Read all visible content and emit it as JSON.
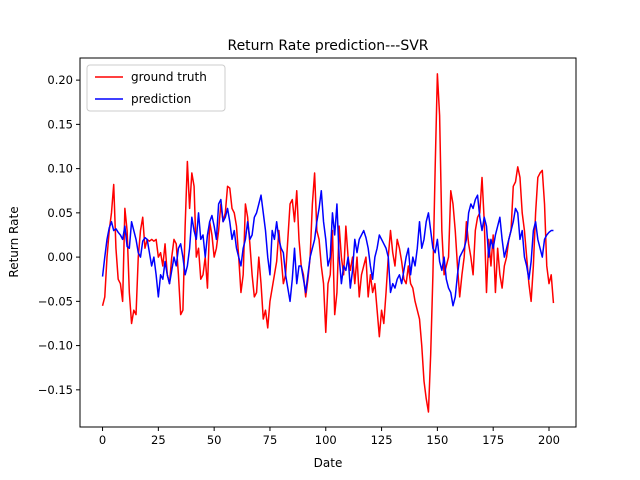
{
  "chart_data": {
    "type": "line",
    "title": "Return Rate prediction---SVR",
    "x_label": "Date",
    "y_label": "Return Rate",
    "x": [
      0,
      1,
      2,
      3,
      4,
      5,
      6,
      7,
      8,
      9,
      10,
      11,
      12,
      13,
      14,
      15,
      16,
      17,
      18,
      19,
      20,
      21,
      22,
      23,
      24,
      25,
      26,
      27,
      28,
      29,
      30,
      31,
      32,
      33,
      34,
      35,
      36,
      37,
      38,
      39,
      40,
      41,
      42,
      43,
      44,
      45,
      46,
      47,
      48,
      49,
      50,
      51,
      52,
      53,
      54,
      55,
      56,
      57,
      58,
      59,
      60,
      61,
      62,
      63,
      64,
      65,
      66,
      67,
      68,
      69,
      70,
      71,
      72,
      73,
      74,
      75,
      76,
      77,
      78,
      79,
      80,
      81,
      82,
      83,
      84,
      85,
      86,
      87,
      88,
      89,
      90,
      91,
      92,
      93,
      94,
      95,
      96,
      97,
      98,
      99,
      100,
      101,
      102,
      103,
      104,
      105,
      106,
      107,
      108,
      109,
      110,
      111,
      112,
      113,
      114,
      115,
      116,
      117,
      118,
      119,
      120,
      121,
      122,
      123,
      124,
      125,
      126,
      127,
      128,
      129,
      130,
      131,
      132,
      133,
      134,
      135,
      136,
      137,
      138,
      139,
      140,
      141,
      142,
      143,
      144,
      145,
      146,
      147,
      148,
      149,
      150,
      151,
      152,
      153,
      154,
      155,
      156,
      157,
      158,
      159,
      160,
      161,
      162,
      163,
      164,
      165,
      166,
      167,
      168,
      169,
      170,
      171,
      172,
      173,
      174,
      175,
      176,
      177,
      178,
      179,
      180,
      181,
      182,
      183,
      184,
      185,
      186,
      187,
      188,
      189,
      190,
      191,
      192,
      193,
      194,
      195,
      196,
      197,
      198,
      199,
      200,
      201,
      202
    ],
    "series": [
      {
        "name": "ground truth",
        "color": "#ff0000",
        "values": [
          -0.055,
          -0.045,
          0.0,
          0.03,
          0.05,
          0.082,
          0.01,
          -0.025,
          -0.03,
          -0.05,
          0.055,
          0.03,
          -0.04,
          -0.075,
          -0.06,
          -0.065,
          0.0,
          0.03,
          0.045,
          0.01,
          0.02,
          0.018,
          0.02,
          0.018,
          0.02,
          0.0,
          0.005,
          -0.01,
          0.015,
          -0.02,
          -0.03,
          0.0,
          0.02,
          0.015,
          -0.02,
          -0.065,
          -0.06,
          0.035,
          0.108,
          0.055,
          0.095,
          0.08,
          0.0,
          0.01,
          -0.025,
          -0.02,
          0.0,
          -0.035,
          0.04,
          0.025,
          0.0,
          0.01,
          0.03,
          0.06,
          0.04,
          0.05,
          0.08,
          0.078,
          0.055,
          0.05,
          0.035,
          0.0,
          -0.04,
          -0.02,
          0.06,
          0.045,
          0.015,
          -0.02,
          -0.045,
          -0.04,
          0.0,
          -0.03,
          -0.07,
          -0.06,
          -0.08,
          -0.05,
          -0.035,
          -0.02,
          -0.005,
          0.03,
          0.0,
          -0.03,
          -0.02,
          0.02,
          0.06,
          0.065,
          0.04,
          0.075,
          0.02,
          -0.01,
          -0.02,
          -0.045,
          -0.025,
          0.0,
          0.06,
          0.095,
          0.03,
          0.02,
          -0.01,
          -0.03,
          -0.085,
          -0.03,
          -0.02,
          0.03,
          -0.065,
          -0.04,
          0.035,
          0.0,
          -0.02,
          0.035,
          0.0,
          -0.015,
          0.0,
          -0.03,
          0.0,
          -0.045,
          -0.02,
          -0.01,
          0.0,
          -0.045,
          -0.02,
          -0.04,
          -0.03,
          -0.06,
          -0.09,
          -0.06,
          -0.075,
          -0.04,
          0.0,
          0.03,
          0.005,
          -0.01,
          0.02,
          0.01,
          -0.005,
          -0.025,
          -0.03,
          -0.01,
          -0.03,
          -0.035,
          -0.05,
          -0.06,
          -0.07,
          -0.1,
          -0.14,
          -0.16,
          -0.175,
          -0.11,
          -0.02,
          0.1,
          0.207,
          0.16,
          0.03,
          -0.02,
          -0.01,
          0.0,
          0.075,
          0.06,
          0.03,
          -0.01,
          -0.045,
          -0.02,
          0.0,
          0.04,
          0.015,
          0.0,
          -0.02,
          0.03,
          0.045,
          0.05,
          0.09,
          0.04,
          -0.04,
          0.02,
          -0.01,
          0.025,
          -0.04,
          0.01,
          -0.02,
          -0.035,
          -0.01,
          0.0,
          0.02,
          0.03,
          0.08,
          0.085,
          0.102,
          0.09,
          0.05,
          0.03,
          0.0,
          -0.03,
          -0.05,
          -0.01,
          0.05,
          0.09,
          0.095,
          0.098,
          0.06,
          -0.01,
          -0.03,
          -0.02,
          -0.052
        ]
      },
      {
        "name": "prediction",
        "color": "#0000ff",
        "values": [
          -0.022,
          0.0,
          0.02,
          0.033,
          0.04,
          0.03,
          0.032,
          0.028,
          0.025,
          0.02,
          0.035,
          0.012,
          0.01,
          0.04,
          0.03,
          0.02,
          0.005,
          0.0,
          0.018,
          0.022,
          0.02,
          0.005,
          -0.01,
          0.0,
          -0.02,
          -0.045,
          -0.02,
          -0.025,
          -0.005,
          -0.02,
          -0.03,
          -0.015,
          0.0,
          -0.01,
          0.01,
          0.015,
          0.0,
          -0.02,
          -0.01,
          0.01,
          0.045,
          0.03,
          0.02,
          0.05,
          0.02,
          0.025,
          0.0,
          0.025,
          0.04,
          0.047,
          0.035,
          0.02,
          0.06,
          0.065,
          0.04,
          0.045,
          0.055,
          0.04,
          0.02,
          0.03,
          0.01,
          0.0,
          -0.01,
          0.01,
          0.02,
          0.04,
          0.02,
          0.025,
          0.045,
          0.05,
          0.06,
          0.07,
          0.05,
          0.03,
          0.0,
          -0.02,
          0.03,
          0.02,
          0.04,
          0.02,
          0.01,
          0.005,
          -0.02,
          -0.035,
          -0.05,
          -0.025,
          0.01,
          -0.03,
          -0.01,
          -0.01,
          -0.025,
          -0.04,
          -0.02,
          0.0,
          0.01,
          0.02,
          0.04,
          0.055,
          0.075,
          0.04,
          0.02,
          -0.01,
          0.0,
          0.05,
          0.025,
          0.06,
          0.0,
          -0.03,
          -0.01,
          -0.015,
          0.0,
          -0.035,
          -0.015,
          0.02,
          0.005,
          0.02,
          0.025,
          0.03,
          0.022,
          0.01,
          -0.01,
          -0.025,
          0.0,
          0.01,
          0.025,
          0.02,
          0.015,
          0.01,
          0.0,
          -0.04,
          -0.03,
          -0.035,
          -0.025,
          -0.02,
          -0.03,
          -0.015,
          0.0,
          0.01,
          -0.02,
          0.0,
          -0.01,
          0.01,
          0.04,
          0.01,
          0.02,
          0.04,
          0.05,
          0.03,
          0.01,
          0.005,
          0.02,
          -0.005,
          -0.015,
          0.0,
          -0.025,
          -0.035,
          -0.04,
          -0.055,
          -0.045,
          -0.02,
          0.0,
          0.005,
          0.01,
          0.02,
          0.05,
          0.06,
          0.055,
          0.065,
          0.07,
          0.045,
          0.03,
          0.045,
          0.035,
          0.0,
          0.02,
          0.01,
          0.025,
          0.035,
          0.045,
          0.02,
          0.0,
          0.01,
          0.02,
          0.03,
          0.04,
          0.055,
          0.05,
          0.02,
          0.03,
          0.0,
          -0.01,
          -0.025,
          -0.005,
          0.03,
          0.04,
          0.02,
          0.01,
          0.0,
          0.02,
          0.025,
          0.028,
          0.03,
          0.03
        ]
      }
    ],
    "xlim": [
      -10.1,
      212.1
    ],
    "ylim": [
      -0.192,
      0.225
    ],
    "xticks": [
      0,
      25,
      50,
      75,
      100,
      125,
      150,
      175,
      200
    ],
    "yticks": [
      {
        "value": -0.15,
        "label": "−0.15"
      },
      {
        "value": -0.1,
        "label": "−0.10"
      },
      {
        "value": -0.05,
        "label": "−0.05"
      },
      {
        "value": 0,
        "label": "0.00"
      },
      {
        "value": 0.05,
        "label": "0.05"
      },
      {
        "value": 0.1,
        "label": "0.10"
      },
      {
        "value": 0.15,
        "label": "0.15"
      },
      {
        "value": 0.2,
        "label": "0.20"
      }
    ],
    "legend": "upper left"
  }
}
